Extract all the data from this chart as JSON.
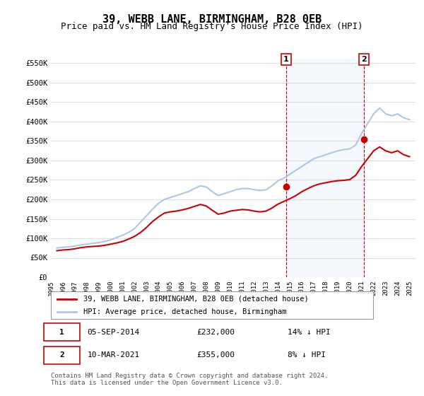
{
  "title": "39, WEBB LANE, BIRMINGHAM, B28 0EB",
  "subtitle": "Price paid vs. HM Land Registry's House Price Index (HPI)",
  "title_fontsize": 11,
  "subtitle_fontsize": 9,
  "hpi_color": "#aec6e8",
  "price_color": "#cc0000",
  "marker_color": "#cc0000",
  "background_color": "#ffffff",
  "grid_color": "#e0e0e0",
  "ylim": [
    0,
    560000
  ],
  "yticks": [
    0,
    50000,
    100000,
    150000,
    200000,
    250000,
    300000,
    350000,
    400000,
    450000,
    500000,
    550000
  ],
  "ytick_labels": [
    "£0",
    "£50K",
    "£100K",
    "£150K",
    "£200K",
    "£250K",
    "£300K",
    "£350K",
    "£400K",
    "£450K",
    "£500K",
    "£550K"
  ],
  "transaction1": {
    "label": "1",
    "date": "05-SEP-2014",
    "price": 232000,
    "pct": "14%",
    "direction": "↓",
    "x_year": 2014.67
  },
  "transaction2": {
    "label": "2",
    "date": "10-MAR-2021",
    "price": 355000,
    "pct": "8%",
    "direction": "↓",
    "x_year": 2021.19
  },
  "legend_line1": "39, WEBB LANE, BIRMINGHAM, B28 0EB (detached house)",
  "legend_line2": "HPI: Average price, detached house, Birmingham",
  "footer": "Contains HM Land Registry data © Crown copyright and database right 2024.\nThis data is licensed under the Open Government Licence v3.0.",
  "hpi_data": {
    "years": [
      1995.5,
      1996.0,
      1996.5,
      1997.0,
      1997.5,
      1998.0,
      1998.5,
      1999.0,
      1999.5,
      2000.0,
      2000.5,
      2001.0,
      2001.5,
      2002.0,
      2002.5,
      2003.0,
      2003.5,
      2004.0,
      2004.5,
      2005.0,
      2005.5,
      2006.0,
      2006.5,
      2007.0,
      2007.5,
      2008.0,
      2008.5,
      2009.0,
      2009.5,
      2010.0,
      2010.5,
      2011.0,
      2011.5,
      2012.0,
      2012.5,
      2013.0,
      2013.5,
      2014.0,
      2014.5,
      2015.0,
      2015.5,
      2016.0,
      2016.5,
      2017.0,
      2017.5,
      2018.0,
      2018.5,
      2019.0,
      2019.5,
      2020.0,
      2020.5,
      2021.0,
      2021.5,
      2022.0,
      2022.5,
      2023.0,
      2023.5,
      2024.0,
      2024.5,
      2025.0
    ],
    "values": [
      75000,
      77000,
      78000,
      80000,
      83000,
      85000,
      87000,
      89000,
      92000,
      96000,
      102000,
      108000,
      115000,
      125000,
      142000,
      158000,
      175000,
      190000,
      200000,
      205000,
      210000,
      215000,
      220000,
      228000,
      235000,
      232000,
      220000,
      210000,
      215000,
      220000,
      225000,
      228000,
      228000,
      225000,
      223000,
      225000,
      235000,
      248000,
      255000,
      265000,
      275000,
      285000,
      295000,
      305000,
      310000,
      315000,
      320000,
      325000,
      328000,
      330000,
      340000,
      370000,
      395000,
      420000,
      435000,
      420000,
      415000,
      420000,
      410000,
      405000
    ]
  },
  "price_data": {
    "years": [
      1995.5,
      1996.0,
      1996.5,
      1997.0,
      1997.5,
      1998.0,
      1998.5,
      1999.0,
      1999.5,
      2000.0,
      2000.5,
      2001.0,
      2001.5,
      2002.0,
      2002.5,
      2003.0,
      2003.5,
      2004.0,
      2004.5,
      2005.0,
      2005.5,
      2006.0,
      2006.5,
      2007.0,
      2007.5,
      2008.0,
      2008.5,
      2009.0,
      2009.5,
      2010.0,
      2010.5,
      2011.0,
      2011.5,
      2012.0,
      2012.5,
      2013.0,
      2013.5,
      2014.0,
      2014.5,
      2015.0,
      2015.5,
      2016.0,
      2016.5,
      2017.0,
      2017.5,
      2018.0,
      2018.5,
      2019.0,
      2019.5,
      2020.0,
      2020.5,
      2021.0,
      2021.5,
      2022.0,
      2022.5,
      2023.0,
      2023.5,
      2024.0,
      2024.5,
      2025.0
    ],
    "values": [
      68000,
      70000,
      71000,
      73000,
      76000,
      78000,
      79000,
      80000,
      82000,
      85000,
      88000,
      92000,
      98000,
      105000,
      115000,
      128000,
      143000,
      155000,
      165000,
      168000,
      170000,
      173000,
      177000,
      182000,
      187000,
      183000,
      172000,
      162000,
      165000,
      170000,
      172000,
      174000,
      173000,
      170000,
      168000,
      170000,
      178000,
      188000,
      195000,
      202000,
      210000,
      220000,
      228000,
      235000,
      240000,
      243000,
      246000,
      248000,
      249000,
      251000,
      262000,
      285000,
      305000,
      325000,
      335000,
      325000,
      320000,
      325000,
      315000,
      310000
    ]
  },
  "xtick_years": [
    1995,
    1996,
    1997,
    1998,
    1999,
    2000,
    2001,
    2002,
    2003,
    2004,
    2005,
    2006,
    2007,
    2008,
    2009,
    2010,
    2011,
    2012,
    2013,
    2014,
    2015,
    2016,
    2017,
    2018,
    2019,
    2020,
    2021,
    2022,
    2023,
    2024,
    2025
  ]
}
